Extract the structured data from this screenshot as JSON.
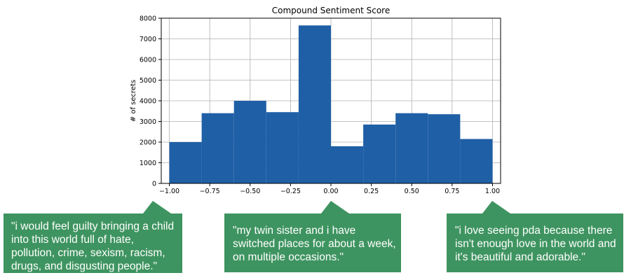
{
  "chart_data": {
    "type": "bar",
    "title": "Compound Sentiment Score",
    "xlabel": "",
    "ylabel": "# of secrets",
    "bins": [
      {
        "x0": -1.0,
        "x1": -0.8,
        "value": 2000
      },
      {
        "x0": -0.8,
        "x1": -0.6,
        "value": 3400
      },
      {
        "x0": -0.6,
        "x1": -0.4,
        "value": 4000
      },
      {
        "x0": -0.4,
        "x1": -0.2,
        "value": 3450
      },
      {
        "x0": -0.2,
        "x1": 0.0,
        "value": 7650
      },
      {
        "x0": 0.0,
        "x1": 0.2,
        "value": 1800
      },
      {
        "x0": 0.2,
        "x1": 0.4,
        "value": 2850
      },
      {
        "x0": 0.4,
        "x1": 0.6,
        "value": 3400
      },
      {
        "x0": 0.6,
        "x1": 0.8,
        "value": 3350
      },
      {
        "x0": 0.8,
        "x1": 1.0,
        "value": 2150
      }
    ],
    "xlim": [
      -1.05,
      1.05
    ],
    "ylim": [
      0,
      8000
    ],
    "xticks": [
      -1.0,
      -0.75,
      -0.5,
      -0.25,
      0.0,
      0.25,
      0.5,
      0.75,
      1.0
    ],
    "xtick_labels": [
      "−1.00",
      "−0.75",
      "−0.50",
      "−0.25",
      "0.00",
      "0.25",
      "0.50",
      "0.75",
      "1.00"
    ],
    "yticks": [
      0,
      1000,
      2000,
      3000,
      4000,
      5000,
      6000,
      7000,
      8000
    ],
    "ytick_labels": [
      "0",
      "1000",
      "2000",
      "3000",
      "4000",
      "5000",
      "6000",
      "7000",
      "8000"
    ],
    "grid": true,
    "bar_color": "#1f5fa6"
  },
  "callouts": [
    {
      "text": "\"i would feel guilty bringing a child\ninto this world full of hate,\npollution, crime, sexism, racism,\ndrugs, and disgusting people.\"",
      "points_to": -1.0
    },
    {
      "text": "\"my twin sister and i have\nswitched places for about a week,\non multiple occasions.\"",
      "points_to": 0.0
    },
    {
      "text": "\"i love seeing pda because there\nisn't enough love in the world and\nit's beautiful and adorable.\"",
      "points_to": 1.0
    }
  ],
  "colors": {
    "callout": "#3e9460",
    "grid": "#b0b0b0",
    "axis": "#000000"
  }
}
